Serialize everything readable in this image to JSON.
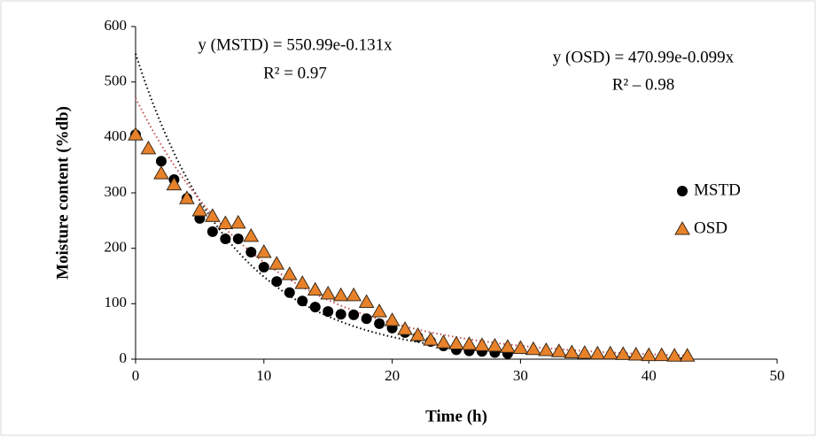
{
  "chart_data": {
    "type": "scatter",
    "x_label": "Time (h)",
    "y_label": "Moisture content (%db)",
    "xlim": [
      0,
      50
    ],
    "xticks": [
      0,
      10,
      20,
      30,
      40,
      50
    ],
    "ylim": [
      0,
      600
    ],
    "yticks": [
      0,
      100,
      200,
      300,
      400,
      500,
      600
    ],
    "grid": false,
    "legend": "right",
    "series": [
      {
        "name": "MSTD",
        "color": "#000000",
        "marker": "circle",
        "x": [
          0,
          2,
          3,
          4,
          5,
          6,
          7,
          8,
          9,
          10,
          11,
          12,
          13,
          14,
          15,
          16,
          17,
          18,
          19,
          20,
          21,
          22,
          23,
          24,
          25,
          26,
          27,
          28,
          29
        ],
        "values": [
          405,
          357,
          324,
          290,
          254,
          230,
          217,
          217,
          193,
          166,
          140,
          120,
          105,
          94,
          86,
          81,
          80,
          73,
          64,
          56,
          48,
          40,
          32,
          24,
          17,
          15,
          14,
          12,
          10
        ],
        "trendline": {
          "a": 550.99,
          "k": -0.131,
          "color": "#000000",
          "label": "y (MSTD) = 550.99e-0.131x",
          "r2_label": "R² = 0.97"
        }
      },
      {
        "name": "OSD",
        "color": "#e8822a",
        "marker": "triangle",
        "x": [
          0,
          1,
          2,
          3,
          4,
          5,
          6,
          7,
          8,
          9,
          10,
          11,
          12,
          13,
          14,
          15,
          16,
          17,
          18,
          19,
          20,
          21,
          22,
          23,
          24,
          25,
          26,
          27,
          28,
          29,
          30,
          31,
          32,
          33,
          34,
          35,
          36,
          37,
          38,
          39,
          40,
          41,
          42,
          43
        ],
        "values": [
          405,
          380,
          335,
          315,
          290,
          268,
          258,
          245,
          246,
          222,
          193,
          172,
          153,
          137,
          125,
          118,
          115,
          115,
          103,
          86,
          70,
          54,
          43,
          35,
          30,
          28,
          27,
          25,
          24,
          22,
          20,
          18,
          16,
          14,
          12,
          11,
          10,
          10,
          9,
          8,
          7,
          7,
          6,
          6
        ],
        "trendline": {
          "a": 470.99,
          "k": -0.099,
          "color": "#c0504d",
          "label": "y (OSD) = 470.99e-0.099x",
          "r2_label": "R² – 0.98"
        }
      }
    ]
  }
}
